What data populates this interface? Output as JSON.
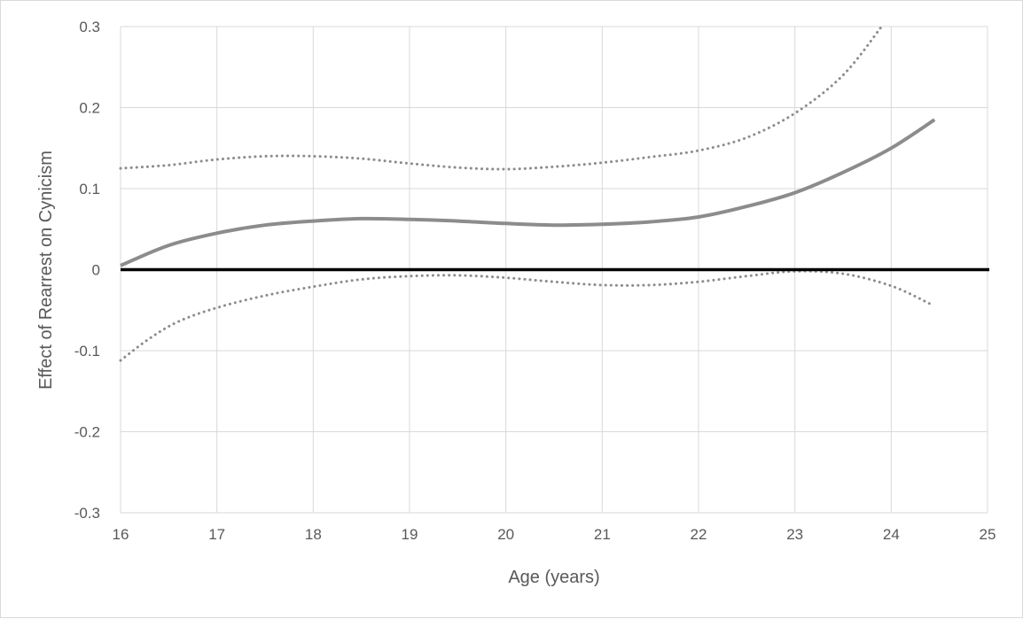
{
  "chart_data": {
    "type": "line",
    "title": "",
    "xlabel": "Age (years)",
    "ylabel": "Effect of Rearrest on Cynicism",
    "xlim": [
      16,
      25
    ],
    "ylim": [
      -0.3,
      0.3
    ],
    "x_ticks": [
      16,
      17,
      18,
      19,
      20,
      21,
      22,
      23,
      24,
      25
    ],
    "y_ticks": [
      0.3,
      0.2,
      0.1,
      0,
      -0.1,
      -0.2,
      -0.3
    ],
    "x_tick_labels": [
      "16",
      "17",
      "18",
      "19",
      "20",
      "21",
      "22",
      "23",
      "24",
      "25"
    ],
    "y_tick_labels": [
      "0.3",
      "0.2",
      "0.1",
      "0",
      "-0.1",
      "-0.2",
      "-0.3"
    ],
    "grid": true,
    "legend": "none",
    "colors": {
      "series": "#8c8c8c",
      "zero_line": "#000000",
      "grid": "#d9d9d9",
      "text": "#595959"
    },
    "series": [
      {
        "role": "estimate",
        "style": "solid",
        "points": [
          [
            16.0,
            0.005
          ],
          [
            16.5,
            0.03
          ],
          [
            17.0,
            0.045
          ],
          [
            17.5,
            0.055
          ],
          [
            18.0,
            0.06
          ],
          [
            18.5,
            0.063
          ],
          [
            19.0,
            0.062
          ],
          [
            19.5,
            0.06
          ],
          [
            20.0,
            0.057
          ],
          [
            20.5,
            0.055
          ],
          [
            21.0,
            0.056
          ],
          [
            21.5,
            0.059
          ],
          [
            22.0,
            0.065
          ],
          [
            22.5,
            0.078
          ],
          [
            23.0,
            0.095
          ],
          [
            23.5,
            0.12
          ],
          [
            24.0,
            0.15
          ],
          [
            24.45,
            0.185
          ]
        ]
      },
      {
        "role": "upper-bound",
        "style": "dotted",
        "points": [
          [
            16.0,
            0.125
          ],
          [
            16.5,
            0.129
          ],
          [
            17.0,
            0.136
          ],
          [
            17.5,
            0.14
          ],
          [
            18.0,
            0.14
          ],
          [
            18.5,
            0.137
          ],
          [
            19.0,
            0.131
          ],
          [
            19.5,
            0.126
          ],
          [
            20.0,
            0.124
          ],
          [
            20.5,
            0.127
          ],
          [
            21.0,
            0.132
          ],
          [
            21.5,
            0.139
          ],
          [
            22.0,
            0.147
          ],
          [
            22.5,
            0.163
          ],
          [
            23.0,
            0.193
          ],
          [
            23.5,
            0.24
          ],
          [
            23.9,
            0.3
          ]
        ]
      },
      {
        "role": "lower-bound",
        "style": "dotted",
        "points": [
          [
            16.0,
            -0.112
          ],
          [
            16.3,
            -0.085
          ],
          [
            16.6,
            -0.064
          ],
          [
            17.0,
            -0.047
          ],
          [
            17.5,
            -0.032
          ],
          [
            18.0,
            -0.021
          ],
          [
            18.5,
            -0.012
          ],
          [
            19.0,
            -0.008
          ],
          [
            19.5,
            -0.007
          ],
          [
            20.0,
            -0.01
          ],
          [
            20.5,
            -0.015
          ],
          [
            21.0,
            -0.019
          ],
          [
            21.5,
            -0.019
          ],
          [
            22.0,
            -0.015
          ],
          [
            22.5,
            -0.008
          ],
          [
            23.0,
            -0.002
          ],
          [
            23.5,
            -0.005
          ],
          [
            24.0,
            -0.02
          ],
          [
            24.4,
            -0.042
          ]
        ]
      }
    ]
  }
}
